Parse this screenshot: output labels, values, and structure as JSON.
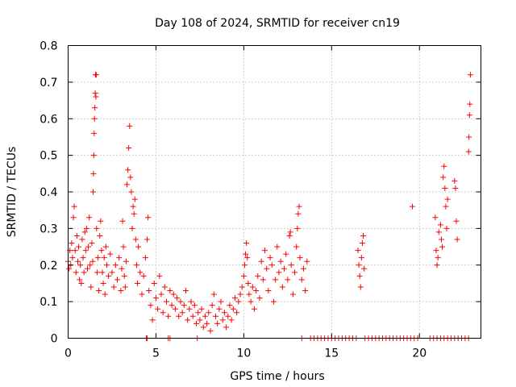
{
  "chart_data": {
    "type": "scatter",
    "title": "Day 108 of 2024, SRMTID for receiver cn19",
    "xlabel": "GPS time / hours",
    "ylabel": "SRMTID / TECUs",
    "xlim": [
      0,
      23.5
    ],
    "ylim": [
      0,
      0.8
    ],
    "xticks": [
      0,
      5,
      10,
      15,
      20
    ],
    "yticks": [
      0,
      0.1,
      0.2,
      0.3,
      0.4,
      0.5,
      0.6,
      0.7,
      0.8
    ],
    "grid": true,
    "marker": "+",
    "color": "#ff0000",
    "series": [
      {
        "name": "cn19",
        "points": [
          [
            0.0,
            0.21
          ],
          [
            0.05,
            0.19
          ],
          [
            0.1,
            0.24
          ],
          [
            0.15,
            0.2
          ],
          [
            0.2,
            0.26
          ],
          [
            0.25,
            0.22
          ],
          [
            0.3,
            0.33
          ],
          [
            0.35,
            0.36
          ],
          [
            0.4,
            0.24
          ],
          [
            0.45,
            0.18
          ],
          [
            0.5,
            0.28
          ],
          [
            0.55,
            0.21
          ],
          [
            0.6,
            0.25
          ],
          [
            0.65,
            0.16
          ],
          [
            0.7,
            0.2
          ],
          [
            0.75,
            0.15
          ],
          [
            0.8,
            0.27
          ],
          [
            0.85,
            0.22
          ],
          [
            0.9,
            0.18
          ],
          [
            0.95,
            0.29
          ],
          [
            1.0,
            0.24
          ],
          [
            1.05,
            0.3
          ],
          [
            1.1,
            0.19
          ],
          [
            1.15,
            0.25
          ],
          [
            1.2,
            0.33
          ],
          [
            1.25,
            0.2
          ],
          [
            1.3,
            0.14
          ],
          [
            1.35,
            0.26
          ],
          [
            1.4,
            0.21
          ],
          [
            1.42,
            0.4
          ],
          [
            1.44,
            0.45
          ],
          [
            1.46,
            0.5
          ],
          [
            1.48,
            0.56
          ],
          [
            1.5,
            0.6
          ],
          [
            1.52,
            0.63
          ],
          [
            1.54,
            0.67
          ],
          [
            1.56,
            0.72
          ],
          [
            1.58,
            0.66
          ],
          [
            1.6,
            0.72
          ],
          [
            1.62,
            0.3
          ],
          [
            1.65,
            0.18
          ],
          [
            1.7,
            0.22
          ],
          [
            1.75,
            0.13
          ],
          [
            1.8,
            0.28
          ],
          [
            1.85,
            0.32
          ],
          [
            1.9,
            0.24
          ],
          [
            1.95,
            0.18
          ],
          [
            2.0,
            0.15
          ],
          [
            2.05,
            0.22
          ],
          [
            2.1,
            0.12
          ],
          [
            2.15,
            0.25
          ],
          [
            2.2,
            0.2
          ],
          [
            2.3,
            0.17
          ],
          [
            2.4,
            0.23
          ],
          [
            2.5,
            0.18
          ],
          [
            2.6,
            0.14
          ],
          [
            2.7,
            0.2
          ],
          [
            2.8,
            0.16
          ],
          [
            2.9,
            0.22
          ],
          [
            3.0,
            0.13
          ],
          [
            3.05,
            0.19
          ],
          [
            3.1,
            0.32
          ],
          [
            3.15,
            0.25
          ],
          [
            3.2,
            0.17
          ],
          [
            3.25,
            0.14
          ],
          [
            3.3,
            0.21
          ],
          [
            3.35,
            0.42
          ],
          [
            3.4,
            0.46
          ],
          [
            3.45,
            0.52
          ],
          [
            3.5,
            0.58
          ],
          [
            3.55,
            0.44
          ],
          [
            3.6,
            0.4
          ],
          [
            3.65,
            0.3
          ],
          [
            3.7,
            0.36
          ],
          [
            3.75,
            0.34
          ],
          [
            3.8,
            0.38
          ],
          [
            3.85,
            0.27
          ],
          [
            3.9,
            0.2
          ],
          [
            3.95,
            0.15
          ],
          [
            4.0,
            0.25
          ],
          [
            4.1,
            0.18
          ],
          [
            4.2,
            0.12
          ],
          [
            4.3,
            0.17
          ],
          [
            4.4,
            0.22
          ],
          [
            4.5,
            0.27
          ],
          [
            4.55,
            0.33
          ],
          [
            4.6,
            0.13
          ],
          [
            4.7,
            0.09
          ],
          [
            4.8,
            0.05
          ],
          [
            4.9,
            0.15
          ],
          [
            5.0,
            0.11
          ],
          [
            5.1,
            0.08
          ],
          [
            5.2,
            0.17
          ],
          [
            5.3,
            0.12
          ],
          [
            5.4,
            0.07
          ],
          [
            5.5,
            0.14
          ],
          [
            5.6,
            0.1
          ],
          [
            5.7,
            0.06
          ],
          [
            5.8,
            0.13
          ],
          [
            5.9,
            0.09
          ],
          [
            6.0,
            0.12
          ],
          [
            6.1,
            0.08
          ],
          [
            6.2,
            0.11
          ],
          [
            6.3,
            0.06
          ],
          [
            6.4,
            0.1
          ],
          [
            6.5,
            0.07
          ],
          [
            6.6,
            0.09
          ],
          [
            6.7,
            0.13
          ],
          [
            6.8,
            0.05
          ],
          [
            6.9,
            0.08
          ],
          [
            7.0,
            0.1
          ],
          [
            7.1,
            0.06
          ],
          [
            7.2,
            0.09
          ],
          [
            7.3,
            0.04
          ],
          [
            7.4,
            0.07
          ],
          [
            7.5,
            0.05
          ],
          [
            7.6,
            0.08
          ],
          [
            7.7,
            0.03
          ],
          [
            7.8,
            0.06
          ],
          [
            7.9,
            0.04
          ],
          [
            8.0,
            0.07
          ],
          [
            8.1,
            0.02
          ],
          [
            8.2,
            0.09
          ],
          [
            8.3,
            0.12
          ],
          [
            8.4,
            0.06
          ],
          [
            8.5,
            0.04
          ],
          [
            8.6,
            0.08
          ],
          [
            8.7,
            0.1
          ],
          [
            8.8,
            0.05
          ],
          [
            8.9,
            0.07
          ],
          [
            9.0,
            0.03
          ],
          [
            9.1,
            0.06
          ],
          [
            9.2,
            0.09
          ],
          [
            9.3,
            0.05
          ],
          [
            9.4,
            0.08
          ],
          [
            9.5,
            0.11
          ],
          [
            9.6,
            0.07
          ],
          [
            9.7,
            0.1
          ],
          [
            9.8,
            0.12
          ],
          [
            9.9,
            0.14
          ],
          [
            10.0,
            0.17
          ],
          [
            10.05,
            0.2
          ],
          [
            10.1,
            0.23
          ],
          [
            10.15,
            0.26
          ],
          [
            10.2,
            0.22
          ],
          [
            10.25,
            0.15
          ],
          [
            10.3,
            0.12
          ],
          [
            10.4,
            0.1
          ],
          [
            10.5,
            0.14
          ],
          [
            10.6,
            0.08
          ],
          [
            10.7,
            0.13
          ],
          [
            10.8,
            0.17
          ],
          [
            10.9,
            0.11
          ],
          [
            11.0,
            0.21
          ],
          [
            11.1,
            0.16
          ],
          [
            11.2,
            0.24
          ],
          [
            11.3,
            0.19
          ],
          [
            11.4,
            0.13
          ],
          [
            11.5,
            0.22
          ],
          [
            11.6,
            0.2
          ],
          [
            11.7,
            0.1
          ],
          [
            11.8,
            0.16
          ],
          [
            11.9,
            0.25
          ],
          [
            12.0,
            0.18
          ],
          [
            12.1,
            0.21
          ],
          [
            12.2,
            0.14
          ],
          [
            12.3,
            0.19
          ],
          [
            12.4,
            0.23
          ],
          [
            12.5,
            0.16
          ],
          [
            12.6,
            0.28
          ],
          [
            12.65,
            0.29
          ],
          [
            12.7,
            0.2
          ],
          [
            12.8,
            0.12
          ],
          [
            12.9,
            0.18
          ],
          [
            13.0,
            0.25
          ],
          [
            13.05,
            0.3
          ],
          [
            13.1,
            0.34
          ],
          [
            13.15,
            0.36
          ],
          [
            13.2,
            0.22
          ],
          [
            13.3,
            0.16
          ],
          [
            13.4,
            0.19
          ],
          [
            13.5,
            0.13
          ],
          [
            13.6,
            0.21
          ],
          [
            16.5,
            0.24
          ],
          [
            16.55,
            0.2
          ],
          [
            16.6,
            0.17
          ],
          [
            16.65,
            0.14
          ],
          [
            16.7,
            0.22
          ],
          [
            16.75,
            0.26
          ],
          [
            16.8,
            0.28
          ],
          [
            16.85,
            0.19
          ],
          [
            19.6,
            0.36
          ],
          [
            20.9,
            0.33
          ],
          [
            20.95,
            0.24
          ],
          [
            21.0,
            0.2
          ],
          [
            21.05,
            0.22
          ],
          [
            21.1,
            0.29
          ],
          [
            21.2,
            0.31
          ],
          [
            21.25,
            0.27
          ],
          [
            21.3,
            0.25
          ],
          [
            21.35,
            0.44
          ],
          [
            21.4,
            0.47
          ],
          [
            21.45,
            0.41
          ],
          [
            21.5,
            0.36
          ],
          [
            21.55,
            0.3
          ],
          [
            21.6,
            0.38
          ],
          [
            22.0,
            0.43
          ],
          [
            22.05,
            0.41
          ],
          [
            22.1,
            0.32
          ],
          [
            22.15,
            0.27
          ],
          [
            22.8,
            0.51
          ],
          [
            22.82,
            0.55
          ],
          [
            22.85,
            0.61
          ],
          [
            22.87,
            0.64
          ],
          [
            22.9,
            0.72
          ],
          [
            4.45,
            0
          ],
          [
            4.5,
            0
          ],
          [
            5.7,
            0
          ],
          [
            5.8,
            0
          ],
          [
            7.35,
            0
          ],
          [
            13.3,
            0
          ],
          [
            13.8,
            0
          ],
          [
            14.0,
            0
          ],
          [
            14.2,
            0
          ],
          [
            14.4,
            0
          ],
          [
            14.6,
            0
          ],
          [
            14.8,
            0
          ],
          [
            15.0,
            0
          ],
          [
            15.2,
            0
          ],
          [
            15.4,
            0
          ],
          [
            15.6,
            0
          ],
          [
            15.8,
            0
          ],
          [
            16.0,
            0
          ],
          [
            16.2,
            0
          ],
          [
            16.4,
            0
          ],
          [
            16.9,
            0
          ],
          [
            17.1,
            0
          ],
          [
            17.3,
            0
          ],
          [
            17.5,
            0
          ],
          [
            17.7,
            0
          ],
          [
            17.9,
            0
          ],
          [
            18.1,
            0
          ],
          [
            18.3,
            0
          ],
          [
            18.5,
            0
          ],
          [
            18.7,
            0
          ],
          [
            18.9,
            0
          ],
          [
            19.1,
            0
          ],
          [
            19.3,
            0
          ],
          [
            19.5,
            0
          ],
          [
            19.7,
            0
          ],
          [
            19.9,
            0
          ],
          [
            20.6,
            0
          ],
          [
            20.8,
            0
          ],
          [
            21.0,
            0
          ],
          [
            21.2,
            0
          ],
          [
            21.4,
            0
          ],
          [
            21.6,
            0
          ],
          [
            21.8,
            0
          ],
          [
            22.0,
            0
          ],
          [
            22.2,
            0
          ],
          [
            22.4,
            0
          ],
          [
            22.6,
            0
          ],
          [
            22.8,
            0
          ]
        ]
      }
    ]
  }
}
